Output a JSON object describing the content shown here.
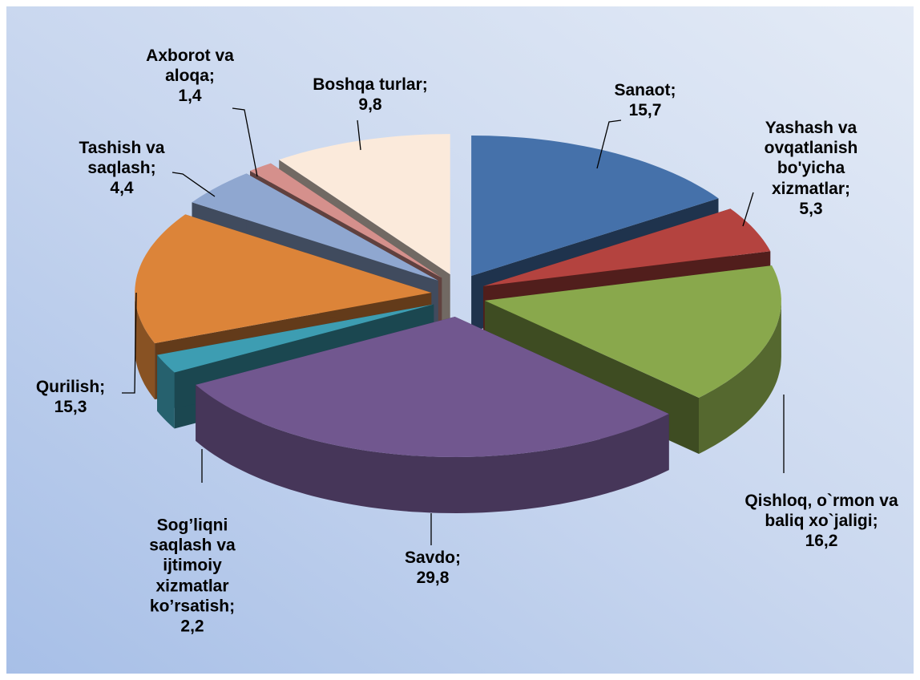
{
  "chart_data": {
    "type": "pie3d",
    "categories": [
      "Sanaot;",
      "Yashash va ovqatlanish bo'yicha xizmatlar;",
      "Qishloq, o`rmon va baliq xo`jaligi;",
      "Savdo;",
      "Sog’liqni saqlash va ijtimoiy xizmatlar ko’rsatish;",
      "Qurilish;",
      "Tashish va saqlash;",
      "Axborot va aloqa;",
      "Boshqa  turlar;"
    ],
    "values": [
      15.7,
      5.3,
      16.2,
      29.8,
      2.2,
      15.3,
      4.4,
      1.4,
      9.8
    ],
    "value_labels": [
      "15,7",
      "5,3",
      "16,2",
      "29,8",
      "2,2",
      "15,3",
      "4,4",
      "1,4",
      "9,8"
    ],
    "colors": [
      "#4571aa",
      "#b4433f",
      "#89a84c",
      "#71578f",
      "#3d9db2",
      "#dc8439",
      "#8fa7d0",
      "#d5908c",
      "#fbeadb"
    ]
  }
}
